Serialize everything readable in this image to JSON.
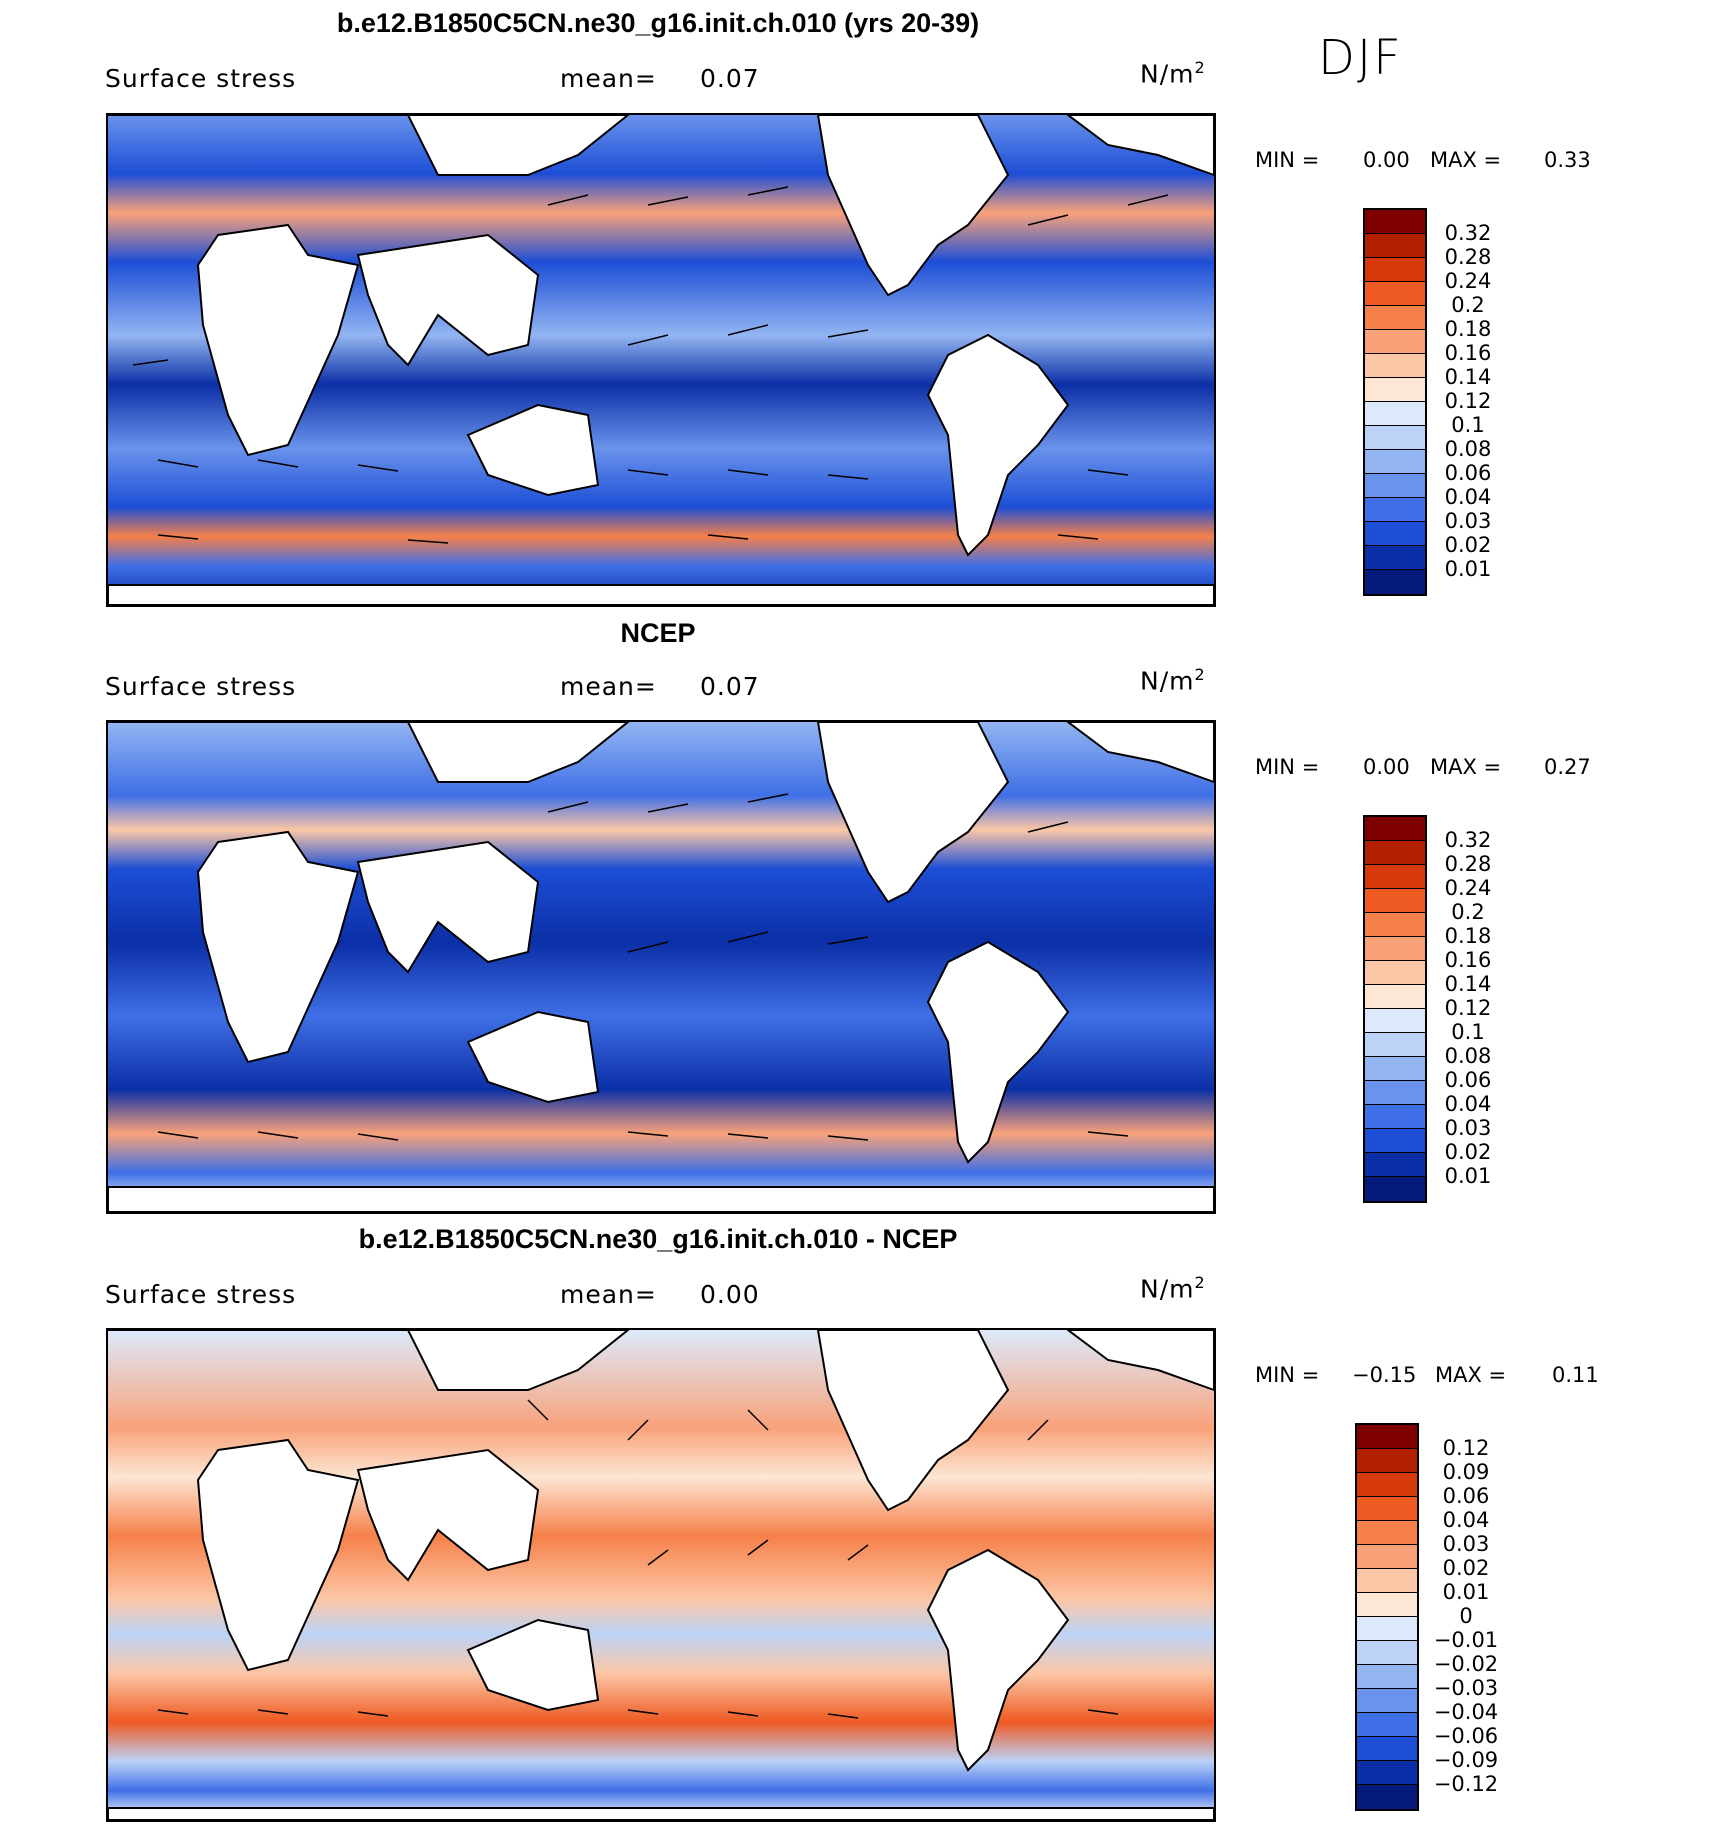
{
  "season": "DJF",
  "panels": [
    {
      "title": "b.e12.B1850C5CN.ne30_g16.init.ch.010 (yrs 20-39)",
      "variable": "Surface stress",
      "mean_label": "mean=",
      "mean_value": "0.07",
      "units": "N/m",
      "units_sup": "2",
      "min_label": "MIN =",
      "min_value": "0.00",
      "max_label": "MAX =",
      "max_value": "0.33",
      "colorbar": {
        "labels": [
          "0.32",
          "0.28",
          "0.24",
          "0.2",
          "0.18",
          "0.16",
          "0.14",
          "0.12",
          "0.1",
          "0.08",
          "0.06",
          "0.04",
          "0.03",
          "0.02",
          "0.01"
        ],
        "colors": [
          "#7f0000",
          "#b22000",
          "#d73a0a",
          "#ee5a22",
          "#f6804a",
          "#f9a27a",
          "#fcc7a6",
          "#fde6d3",
          "#dce9fb",
          "#bcd3f7",
          "#93b5f2",
          "#6a93ec",
          "#3f6fe6",
          "#1d4ed6",
          "#0b2fa6",
          "#051a7a"
        ]
      }
    },
    {
      "title": "NCEP",
      "variable": "Surface stress",
      "mean_label": "mean=",
      "mean_value": "0.07",
      "units": "N/m",
      "units_sup": "2",
      "min_label": "MIN =",
      "min_value": "0.00",
      "max_label": "MAX =",
      "max_value": "0.27",
      "colorbar": {
        "labels": [
          "0.32",
          "0.28",
          "0.24",
          "0.2",
          "0.18",
          "0.16",
          "0.14",
          "0.12",
          "0.1",
          "0.08",
          "0.06",
          "0.04",
          "0.03",
          "0.02",
          "0.01"
        ],
        "colors": [
          "#7f0000",
          "#b22000",
          "#d73a0a",
          "#ee5a22",
          "#f6804a",
          "#f9a27a",
          "#fcc7a6",
          "#fde6d3",
          "#dce9fb",
          "#bcd3f7",
          "#93b5f2",
          "#6a93ec",
          "#3f6fe6",
          "#1d4ed6",
          "#0b2fa6",
          "#051a7a"
        ]
      }
    },
    {
      "title": "b.e12.B1850C5CN.ne30_g16.init.ch.010 - NCEP",
      "variable": "Surface stress",
      "mean_label": "mean=",
      "mean_value": "0.00",
      "units": "N/m",
      "units_sup": "2",
      "min_label": "MIN =",
      "min_value": "−0.15",
      "max_label": "MAX =",
      "max_value": "0.11",
      "colorbar": {
        "labels": [
          "0.12",
          "0.09",
          "0.06",
          "0.04",
          "0.03",
          "0.02",
          "0.01",
          "0",
          "−0.01",
          "−0.02",
          "−0.03",
          "−0.04",
          "−0.06",
          "−0.09",
          "−0.12"
        ],
        "colors": [
          "#7f0000",
          "#b22000",
          "#d73a0a",
          "#ee5a22",
          "#f6804a",
          "#f9a27a",
          "#fcc7a6",
          "#fde6d3",
          "#dce9fb",
          "#bcd3f7",
          "#93b5f2",
          "#6a93ec",
          "#3f6fe6",
          "#1d4ed6",
          "#0b2fa6",
          "#051a7a"
        ]
      }
    }
  ]
}
